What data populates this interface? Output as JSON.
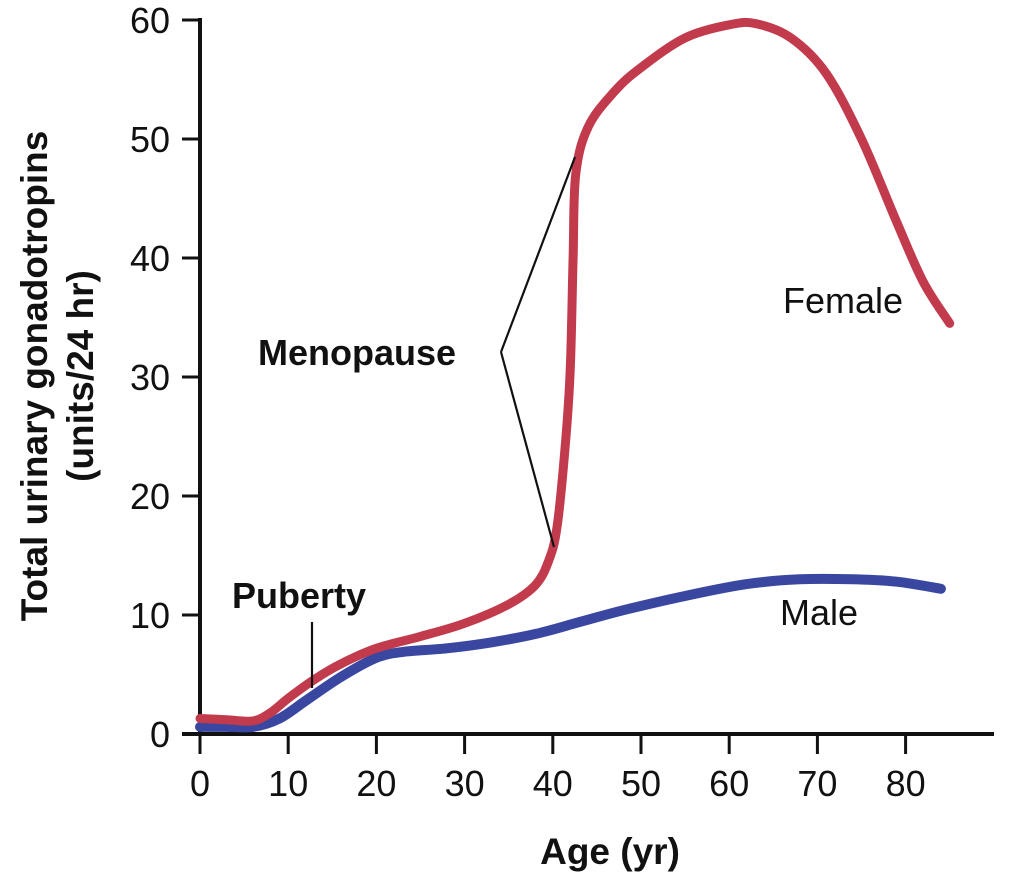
{
  "chart_data": {
    "type": "line",
    "xlabel": "Age (yr)",
    "ylabel_lines": [
      "Total urinary gonadotropins",
      "(units/24 hr)"
    ],
    "xlim": [
      0,
      90
    ],
    "ylim": [
      0,
      60
    ],
    "x_ticks": [
      0,
      10,
      20,
      30,
      40,
      50,
      60,
      70,
      80
    ],
    "y_ticks": [
      0,
      10,
      20,
      30,
      40,
      50,
      60
    ],
    "grid": false,
    "colors": {
      "Female": "#c23b4d",
      "Male": "#3a47a0"
    },
    "series": [
      {
        "name": "Female",
        "points": [
          [
            0,
            1.3
          ],
          [
            3,
            1.2
          ],
          [
            6,
            1.1
          ],
          [
            8,
            1.8
          ],
          [
            10,
            3.0
          ],
          [
            13,
            4.6
          ],
          [
            16,
            5.9
          ],
          [
            20,
            7.2
          ],
          [
            25,
            8.2
          ],
          [
            30,
            9.3
          ],
          [
            35,
            10.9
          ],
          [
            38,
            12.5
          ],
          [
            39.5,
            14.5
          ],
          [
            40.5,
            17.5
          ],
          [
            41.5,
            25.0
          ],
          [
            42,
            31.0
          ],
          [
            42.3,
            40.0
          ],
          [
            42.6,
            47.0
          ],
          [
            44,
            51.0
          ],
          [
            47,
            54.0
          ],
          [
            50,
            56.0
          ],
          [
            55,
            58.5
          ],
          [
            60,
            59.6
          ],
          [
            63,
            59.7
          ],
          [
            67,
            58.5
          ],
          [
            71,
            55.5
          ],
          [
            75,
            50.0
          ],
          [
            79,
            43.0
          ],
          [
            82,
            38.0
          ],
          [
            85,
            34.5
          ]
        ]
      },
      {
        "name": "Male",
        "points": [
          [
            0,
            0.6
          ],
          [
            3,
            0.6
          ],
          [
            6,
            0.6
          ],
          [
            9,
            1.3
          ],
          [
            12,
            2.8
          ],
          [
            16,
            4.8
          ],
          [
            20,
            6.4
          ],
          [
            23,
            6.9
          ],
          [
            28,
            7.2
          ],
          [
            33,
            7.7
          ],
          [
            38,
            8.4
          ],
          [
            43,
            9.4
          ],
          [
            48,
            10.4
          ],
          [
            55,
            11.6
          ],
          [
            62,
            12.6
          ],
          [
            68,
            13.0
          ],
          [
            74,
            13.0
          ],
          [
            79,
            12.8
          ],
          [
            84,
            12.2
          ]
        ]
      }
    ],
    "annotations": {
      "menopause": "Menopause",
      "puberty": "Puberty"
    }
  }
}
